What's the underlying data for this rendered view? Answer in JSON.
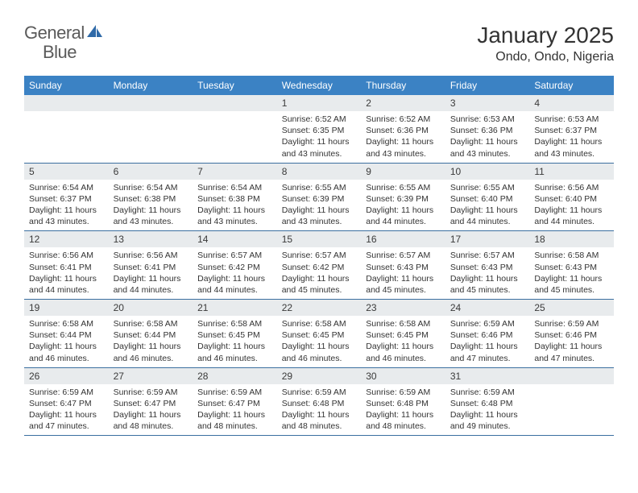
{
  "logo": {
    "text1": "General",
    "text2": "Blue"
  },
  "title": "January 2025",
  "location": "Ondo, Ondo, Nigeria",
  "colors": {
    "header_bg": "#3b82c4",
    "header_text": "#ffffff",
    "daynum_bg": "#e8ebed",
    "border": "#3b6fa0",
    "logo_gray": "#5a5a5a",
    "logo_blue": "#2f6aa8"
  },
  "weekdays": [
    "Sunday",
    "Monday",
    "Tuesday",
    "Wednesday",
    "Thursday",
    "Friday",
    "Saturday"
  ],
  "weeks": [
    [
      null,
      null,
      null,
      {
        "n": "1",
        "sr": "Sunrise: 6:52 AM",
        "ss": "Sunset: 6:35 PM",
        "d1": "Daylight: 11 hours",
        "d2": "and 43 minutes."
      },
      {
        "n": "2",
        "sr": "Sunrise: 6:52 AM",
        "ss": "Sunset: 6:36 PM",
        "d1": "Daylight: 11 hours",
        "d2": "and 43 minutes."
      },
      {
        "n": "3",
        "sr": "Sunrise: 6:53 AM",
        "ss": "Sunset: 6:36 PM",
        "d1": "Daylight: 11 hours",
        "d2": "and 43 minutes."
      },
      {
        "n": "4",
        "sr": "Sunrise: 6:53 AM",
        "ss": "Sunset: 6:37 PM",
        "d1": "Daylight: 11 hours",
        "d2": "and 43 minutes."
      }
    ],
    [
      {
        "n": "5",
        "sr": "Sunrise: 6:54 AM",
        "ss": "Sunset: 6:37 PM",
        "d1": "Daylight: 11 hours",
        "d2": "and 43 minutes."
      },
      {
        "n": "6",
        "sr": "Sunrise: 6:54 AM",
        "ss": "Sunset: 6:38 PM",
        "d1": "Daylight: 11 hours",
        "d2": "and 43 minutes."
      },
      {
        "n": "7",
        "sr": "Sunrise: 6:54 AM",
        "ss": "Sunset: 6:38 PM",
        "d1": "Daylight: 11 hours",
        "d2": "and 43 minutes."
      },
      {
        "n": "8",
        "sr": "Sunrise: 6:55 AM",
        "ss": "Sunset: 6:39 PM",
        "d1": "Daylight: 11 hours",
        "d2": "and 43 minutes."
      },
      {
        "n": "9",
        "sr": "Sunrise: 6:55 AM",
        "ss": "Sunset: 6:39 PM",
        "d1": "Daylight: 11 hours",
        "d2": "and 44 minutes."
      },
      {
        "n": "10",
        "sr": "Sunrise: 6:55 AM",
        "ss": "Sunset: 6:40 PM",
        "d1": "Daylight: 11 hours",
        "d2": "and 44 minutes."
      },
      {
        "n": "11",
        "sr": "Sunrise: 6:56 AM",
        "ss": "Sunset: 6:40 PM",
        "d1": "Daylight: 11 hours",
        "d2": "and 44 minutes."
      }
    ],
    [
      {
        "n": "12",
        "sr": "Sunrise: 6:56 AM",
        "ss": "Sunset: 6:41 PM",
        "d1": "Daylight: 11 hours",
        "d2": "and 44 minutes."
      },
      {
        "n": "13",
        "sr": "Sunrise: 6:56 AM",
        "ss": "Sunset: 6:41 PM",
        "d1": "Daylight: 11 hours",
        "d2": "and 44 minutes."
      },
      {
        "n": "14",
        "sr": "Sunrise: 6:57 AM",
        "ss": "Sunset: 6:42 PM",
        "d1": "Daylight: 11 hours",
        "d2": "and 44 minutes."
      },
      {
        "n": "15",
        "sr": "Sunrise: 6:57 AM",
        "ss": "Sunset: 6:42 PM",
        "d1": "Daylight: 11 hours",
        "d2": "and 45 minutes."
      },
      {
        "n": "16",
        "sr": "Sunrise: 6:57 AM",
        "ss": "Sunset: 6:43 PM",
        "d1": "Daylight: 11 hours",
        "d2": "and 45 minutes."
      },
      {
        "n": "17",
        "sr": "Sunrise: 6:57 AM",
        "ss": "Sunset: 6:43 PM",
        "d1": "Daylight: 11 hours",
        "d2": "and 45 minutes."
      },
      {
        "n": "18",
        "sr": "Sunrise: 6:58 AM",
        "ss": "Sunset: 6:43 PM",
        "d1": "Daylight: 11 hours",
        "d2": "and 45 minutes."
      }
    ],
    [
      {
        "n": "19",
        "sr": "Sunrise: 6:58 AM",
        "ss": "Sunset: 6:44 PM",
        "d1": "Daylight: 11 hours",
        "d2": "and 46 minutes."
      },
      {
        "n": "20",
        "sr": "Sunrise: 6:58 AM",
        "ss": "Sunset: 6:44 PM",
        "d1": "Daylight: 11 hours",
        "d2": "and 46 minutes."
      },
      {
        "n": "21",
        "sr": "Sunrise: 6:58 AM",
        "ss": "Sunset: 6:45 PM",
        "d1": "Daylight: 11 hours",
        "d2": "and 46 minutes."
      },
      {
        "n": "22",
        "sr": "Sunrise: 6:58 AM",
        "ss": "Sunset: 6:45 PM",
        "d1": "Daylight: 11 hours",
        "d2": "and 46 minutes."
      },
      {
        "n": "23",
        "sr": "Sunrise: 6:58 AM",
        "ss": "Sunset: 6:45 PM",
        "d1": "Daylight: 11 hours",
        "d2": "and 46 minutes."
      },
      {
        "n": "24",
        "sr": "Sunrise: 6:59 AM",
        "ss": "Sunset: 6:46 PM",
        "d1": "Daylight: 11 hours",
        "d2": "and 47 minutes."
      },
      {
        "n": "25",
        "sr": "Sunrise: 6:59 AM",
        "ss": "Sunset: 6:46 PM",
        "d1": "Daylight: 11 hours",
        "d2": "and 47 minutes."
      }
    ],
    [
      {
        "n": "26",
        "sr": "Sunrise: 6:59 AM",
        "ss": "Sunset: 6:47 PM",
        "d1": "Daylight: 11 hours",
        "d2": "and 47 minutes."
      },
      {
        "n": "27",
        "sr": "Sunrise: 6:59 AM",
        "ss": "Sunset: 6:47 PM",
        "d1": "Daylight: 11 hours",
        "d2": "and 48 minutes."
      },
      {
        "n": "28",
        "sr": "Sunrise: 6:59 AM",
        "ss": "Sunset: 6:47 PM",
        "d1": "Daylight: 11 hours",
        "d2": "and 48 minutes."
      },
      {
        "n": "29",
        "sr": "Sunrise: 6:59 AM",
        "ss": "Sunset: 6:48 PM",
        "d1": "Daylight: 11 hours",
        "d2": "and 48 minutes."
      },
      {
        "n": "30",
        "sr": "Sunrise: 6:59 AM",
        "ss": "Sunset: 6:48 PM",
        "d1": "Daylight: 11 hours",
        "d2": "and 48 minutes."
      },
      {
        "n": "31",
        "sr": "Sunrise: 6:59 AM",
        "ss": "Sunset: 6:48 PM",
        "d1": "Daylight: 11 hours",
        "d2": "and 49 minutes."
      },
      null
    ]
  ]
}
